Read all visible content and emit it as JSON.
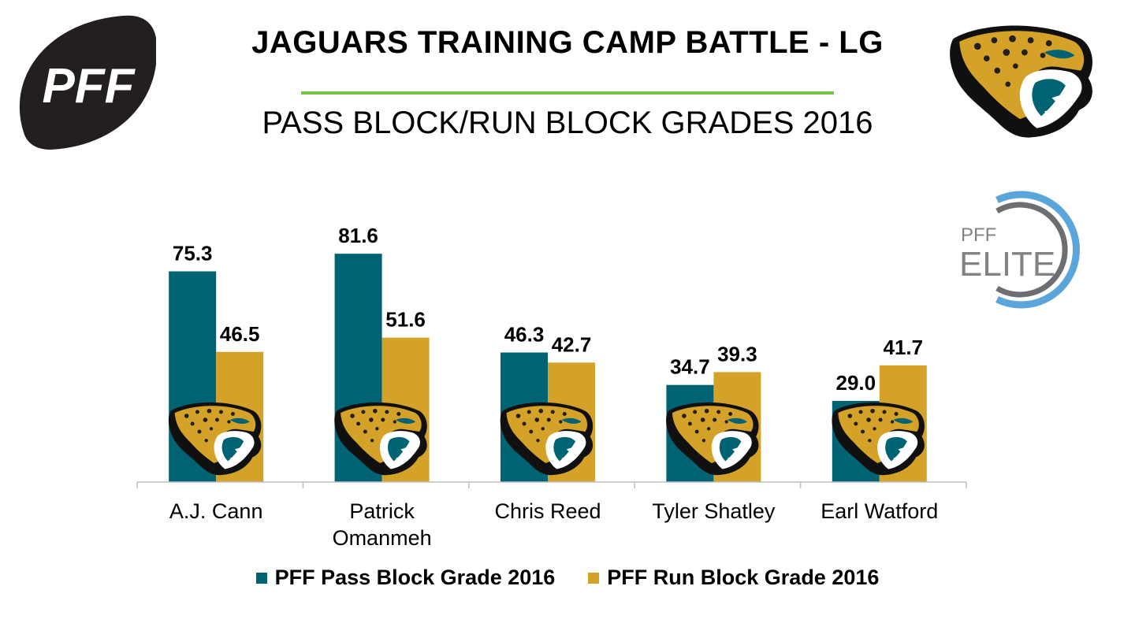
{
  "header": {
    "title": "JAGUARS TRAINING CAMP BATTLE - LG",
    "subtitle": "PASS BLOCK/RUN BLOCK GRADES 2016",
    "pff_logo_text": "PFF",
    "elite_badge": {
      "top": "PFF",
      "bottom": "ELITE"
    }
  },
  "colors": {
    "pass": "#006373",
    "run": "#D5A229",
    "rule": "#7AC143",
    "logo_dark": "#231F20",
    "elite_ring": "#5AA5DA",
    "elite_text": "#808285"
  },
  "icons": {
    "pff_logo": "pff-football-logo-icon",
    "jaguar": "jaguar-head-logo-icon",
    "elite": "pff-elite-badge-icon"
  },
  "chart_data": {
    "type": "bar",
    "categories": [
      "A.J. Cann",
      "Patrick Omanmeh",
      "Chris Reed",
      "Tyler Shatley",
      "Earl Watford"
    ],
    "series": [
      {
        "name": "PFF Pass Block Grade 2016",
        "values": [
          75.3,
          81.6,
          46.3,
          34.7,
          29.0
        ]
      },
      {
        "name": "PFF Run Block Grade 2016",
        "values": [
          46.5,
          51.6,
          42.7,
          39.3,
          41.7
        ]
      }
    ],
    "data_labels": [
      [
        "75.3",
        "81.6",
        "46.3",
        "34.7",
        "29.0"
      ],
      [
        "46.5",
        "51.6",
        "42.7",
        "39.3",
        "41.7"
      ]
    ],
    "title": "PASS BLOCK/RUN BLOCK GRADES 2016",
    "xlabel": "",
    "ylabel": "",
    "ylim": [
      0,
      100
    ],
    "grid": false,
    "legend": "bottom"
  }
}
